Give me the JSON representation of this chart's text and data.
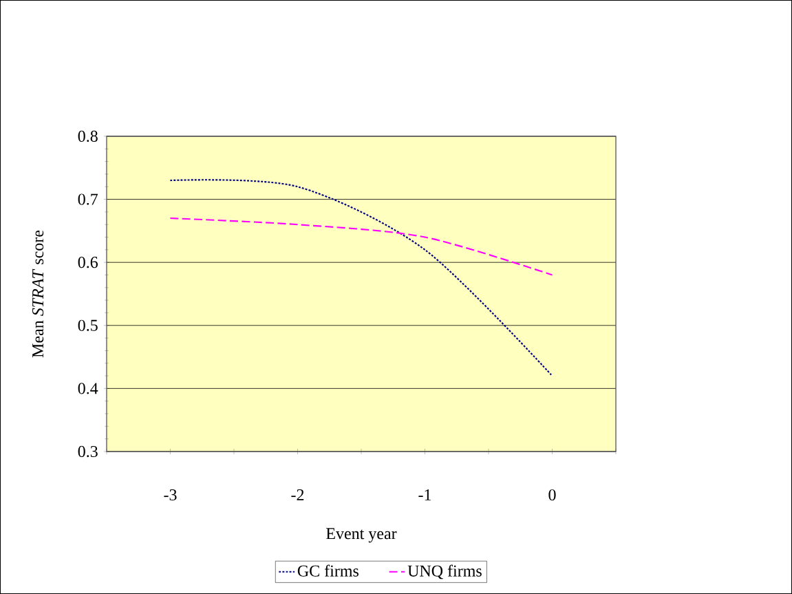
{
  "chart_data": {
    "type": "line",
    "xlabel": "Event year",
    "ylabel": "Mean *STRAT* score",
    "x": [
      -3,
      -2,
      -1,
      0
    ],
    "series": [
      {
        "name": "GC firms",
        "color": "#000080",
        "line_style": "dotted",
        "values": [
          0.73,
          0.72,
          0.62,
          0.42
        ]
      },
      {
        "name": "UNQ firms",
        "color": "#ff00ff",
        "line_style": "dashed",
        "values": [
          0.67,
          0.66,
          0.64,
          0.58
        ]
      }
    ],
    "xlim": [
      -3.5,
      0.5
    ],
    "xticks": [
      {
        "value": -3.5,
        "label": null
      },
      -3,
      {
        "value": -2.5,
        "label": null
      },
      -2,
      {
        "value": -1.5,
        "label": null
      },
      -1,
      {
        "value": -0.5,
        "label": null
      },
      0,
      {
        "value": 0.5,
        "label": null
      }
    ],
    "ylim": [
      0.3,
      0.8
    ],
    "yticks": [
      0.3,
      0.4,
      0.5,
      0.6,
      0.7,
      0.8
    ],
    "grid": "y",
    "legend": "bottom",
    "marker": "none"
  }
}
